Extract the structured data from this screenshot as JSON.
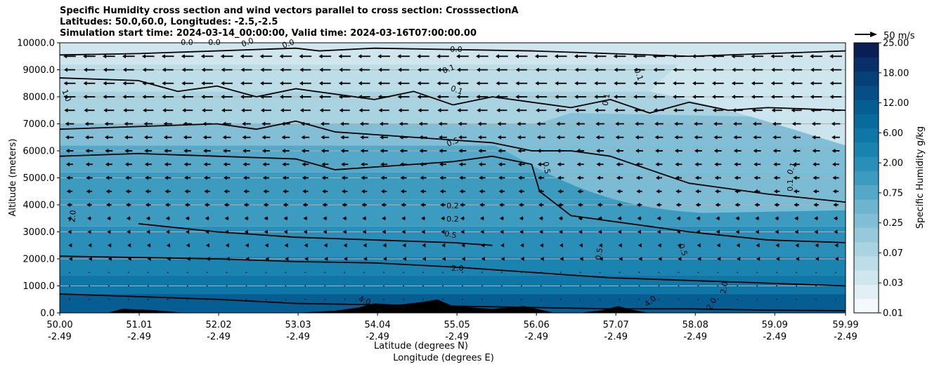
{
  "title_lines": [
    "Specific Humidity cross section and wind vectors parallel to cross section: CrosssectionA",
    "Latitudes: 50.0,60.0, Longitudes: -2.5,-2.5",
    "Simulation start time: 2024-03-14_00:00:00, Valid time: 2024-03-16T07:00:00.00"
  ],
  "chart_data": {
    "type": "heatmap",
    "subtype": "filled contour cross-section with wind vectors",
    "ylabel": "Altitude (meters)",
    "xlabel_lines": [
      "Latitude (degrees N)",
      "Longitude (degrees E)"
    ],
    "ylim": [
      0,
      10000
    ],
    "xlim": [
      50.0,
      59.99
    ],
    "yticks": [
      0,
      1000,
      2000,
      3000,
      4000,
      5000,
      6000,
      7000,
      8000,
      9000,
      10000
    ],
    "ytick_labels": [
      "0.0",
      "1000.0",
      "2000.0",
      "3000.0",
      "4000.0",
      "5000.0",
      "6000.0",
      "7000.0",
      "8000.0",
      "9000.0",
      "10000.0"
    ],
    "xticks": [
      50.0,
      51.01,
      52.02,
      53.03,
      54.04,
      55.05,
      56.06,
      57.07,
      58.08,
      59.09,
      59.99
    ],
    "xtick_lat_labels": [
      "50.00",
      "51.01",
      "52.02",
      "53.03",
      "54.04",
      "55.05",
      "56.06",
      "57.07",
      "58.08",
      "59.09",
      "59.99"
    ],
    "xtick_lon_labels": [
      "-2.49",
      "-2.49",
      "-2.49",
      "-2.49",
      "-2.49",
      "-2.49",
      "-2.49",
      "-2.49",
      "-2.49",
      "-2.49",
      "-2.49"
    ],
    "grid": "horizontal",
    "colorbar": {
      "label": "Specific Humidity g/kg",
      "levels": [
        0.01,
        0.02,
        0.03,
        0.05,
        0.07,
        0.1,
        0.25,
        0.5,
        0.75,
        1.0,
        2.0,
        3.0,
        6.0,
        9.0,
        12.0,
        15.0,
        18.0,
        21.0,
        25.0
      ],
      "tick_labels": [
        "0.01",
        "0.03",
        "0.07",
        "0.25",
        "0.75",
        "2.00",
        "6.00",
        "12.00",
        "18.00",
        "25.00"
      ],
      "colors": [
        "#f4fafc",
        "#e2f0f5",
        "#cfe6ee",
        "#bddde8",
        "#aad3e2",
        "#96c9dc",
        "#82bfd6",
        "#6cb4cf",
        "#55a8c7",
        "#3d9bc0",
        "#2a8fb8",
        "#1a83b0",
        "#0e77a7",
        "#086a9d",
        "#065d92",
        "#064f86",
        "#073f77",
        "#082f68",
        "#0b1d55"
      ]
    },
    "contour_labels": [
      "0.0",
      "0.0",
      "0.0",
      "0.0",
      "0.0",
      "0.1",
      "0.1",
      "0.1",
      "0.1",
      "0.1",
      "0.1",
      "0.5",
      "0.5",
      "0.2",
      "0.2",
      "0.5",
      "0.5",
      "0.5",
      "2.0",
      "2.0",
      "2.0",
      "2.0",
      "4.0",
      "4.0",
      "1.0"
    ],
    "contours": [
      {
        "level": "0.0",
        "x": [
          50.0,
          51.0,
          52.0,
          53.0,
          53.3,
          54.0,
          55.0,
          56.0,
          57.0,
          58.0,
          59.0,
          59.99
        ],
        "y": [
          9550,
          9600,
          9700,
          9800,
          9700,
          9800,
          9750,
          9700,
          9600,
          9500,
          9600,
          9700
        ]
      },
      {
        "level": "0.1",
        "x": [
          50.0,
          51.0,
          51.5,
          52.0,
          52.5,
          53.0,
          53.5,
          54.0,
          54.5,
          55.0,
          55.5,
          56.0,
          56.5,
          57.0,
          57.5,
          58.0,
          58.5,
          59.0,
          59.99
        ],
        "y": [
          8700,
          8600,
          8200,
          8400,
          8000,
          8300,
          8100,
          7900,
          8200,
          7700,
          8000,
          7800,
          7600,
          7900,
          7400,
          7800,
          7500,
          7600,
          7500
        ]
      },
      {
        "level": "0.2",
        "x": [
          50.0,
          51.0,
          52.0,
          52.5,
          53.0,
          53.5,
          54.0,
          55.0,
          55.5,
          56.0,
          56.5,
          57.0,
          58.0,
          59.0,
          59.99
        ],
        "y": [
          6800,
          6900,
          7000,
          6800,
          7100,
          6700,
          6600,
          6400,
          6300,
          6000,
          6000,
          5800,
          4800,
          4400,
          4100
        ]
      },
      {
        "level": "0.5",
        "x": [
          50.0,
          51.0,
          52.0,
          53.0,
          53.5,
          54.0,
          55.0,
          55.5,
          56.0,
          56.1,
          56.5,
          57.0,
          58.0,
          59.0,
          59.99
        ],
        "y": [
          5800,
          5900,
          5800,
          5700,
          5300,
          5400,
          5600,
          5800,
          5500,
          4500,
          3600,
          3400,
          3000,
          2700,
          2600
        ]
      },
      {
        "level": "0.5",
        "x": [
          51.0,
          52.0,
          53.0,
          54.0,
          55.0,
          55.5
        ],
        "y": [
          3300,
          3000,
          2800,
          2700,
          2600,
          2500
        ]
      },
      {
        "level": "2.0",
        "x": [
          50.0,
          51.0,
          52.0,
          53.0,
          54.0,
          55.0,
          56.0,
          56.5,
          57.0,
          58.0,
          59.0,
          59.99
        ],
        "y": [
          2100,
          2050,
          2000,
          1900,
          1850,
          1700,
          1500,
          1400,
          1300,
          1200,
          1100,
          1000
        ]
      },
      {
        "level": "4.0",
        "x": [
          50.0,
          51.0,
          52.0,
          53.0,
          54.0,
          55.0,
          56.0,
          57.0,
          58.0,
          59.0,
          59.99
        ],
        "y": [
          700,
          600,
          500,
          350,
          300,
          250,
          200,
          150,
          150,
          100,
          80
        ]
      }
    ],
    "terrain": {
      "x": [
        50.0,
        50.6,
        50.8,
        51.2,
        51.6,
        52.3,
        53.0,
        53.5,
        53.8,
        54.0,
        54.3,
        54.6,
        54.8,
        55.0,
        55.5,
        55.9,
        56.3,
        56.6,
        56.9,
        57.1,
        57.3,
        57.5,
        59.99
      ],
      "y": [
        0,
        0,
        150,
        100,
        0,
        0,
        0,
        80,
        200,
        350,
        300,
        400,
        500,
        250,
        150,
        250,
        0,
        0,
        100,
        250,
        100,
        0,
        0
      ]
    },
    "wind": {
      "reference": "50 m/s",
      "direction": "parallel to cross section, toward decreasing latitude",
      "altitudes_m": [
        9500,
        9000,
        8500,
        8000,
        7500,
        7000,
        6500,
        6000,
        5500,
        5000,
        4500,
        4000,
        3500,
        3000,
        2500,
        2000,
        1500,
        1000,
        500
      ],
      "speeds_ms": [
        42,
        38,
        40,
        40,
        36,
        30,
        28,
        26,
        24,
        22,
        20,
        18,
        14,
        12,
        8,
        5,
        3,
        2,
        1
      ]
    }
  }
}
